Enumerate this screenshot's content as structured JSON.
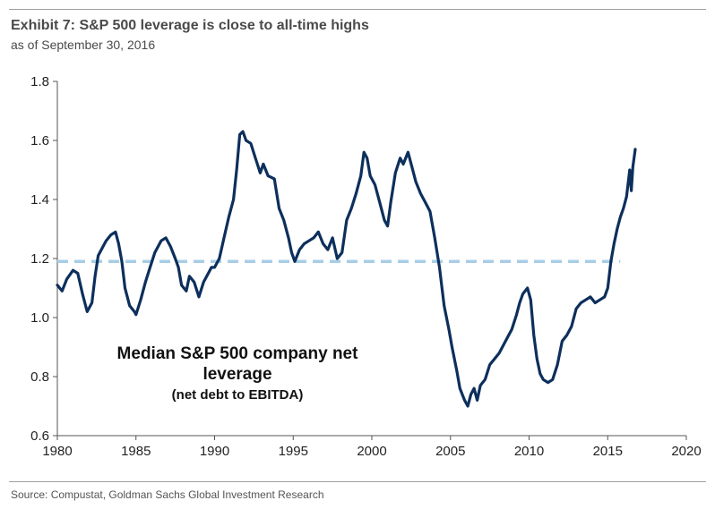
{
  "header": {
    "title": "Exhibit 7: S&P 500 leverage is close to all-time highs",
    "subtitle": "as of September 30, 2016"
  },
  "footer": {
    "source": "Source: Compustat, Goldman Sachs Global Investment Research"
  },
  "colors": {
    "series": "#0d2f5c",
    "reference": "#a8cde6",
    "axis": "#555555"
  },
  "chart_data": {
    "type": "line",
    "title": "Exhibit 7: S&P 500 leverage is close to all-time highs",
    "subtitle": "as of September 30, 2016",
    "xlabel": "",
    "ylabel": "",
    "xlim": [
      1980,
      2020
    ],
    "ylim": [
      0.6,
      1.8
    ],
    "x_ticks": [
      1980,
      1985,
      1990,
      1995,
      2000,
      2005,
      2010,
      2015,
      2020
    ],
    "y_ticks": [
      0.6,
      0.8,
      1.0,
      1.2,
      1.4,
      1.6,
      1.8
    ],
    "y_tick_labels": [
      "0.6",
      "0.8",
      "1.0",
      "1.2",
      "1.4",
      "1.6",
      "1.8"
    ],
    "grid": false,
    "annotation": {
      "line1": "Median  S&P 500 company net",
      "line2": "leverage",
      "line3": "(net debt to EBITDA)"
    },
    "reference_line": {
      "y": 1.19,
      "x_start": 1980,
      "x_end": 2015.8,
      "style": "dashed"
    },
    "series": [
      {
        "x": [
          1980.0,
          1980.3,
          1980.6,
          1981.0,
          1981.3,
          1981.6,
          1981.9,
          1982.2,
          1982.4,
          1982.6,
          1982.9,
          1983.1,
          1983.4,
          1983.7,
          1983.9,
          1984.1,
          1984.3,
          1984.6,
          1984.9,
          1985.0,
          1985.3,
          1985.6,
          1985.9,
          1986.2,
          1986.6,
          1986.9,
          1987.2,
          1987.5,
          1987.7,
          1987.9,
          1988.2,
          1988.4,
          1988.7,
          1989.0,
          1989.3,
          1989.6,
          1989.8,
          1990.0,
          1990.3,
          1990.6,
          1990.9,
          1991.2,
          1991.4,
          1991.6,
          1991.8,
          1992.0,
          1992.3,
          1992.6,
          1992.9,
          1993.1,
          1993.4,
          1993.8,
          1994.1,
          1994.4,
          1994.7,
          1994.9,
          1995.1,
          1995.4,
          1995.7,
          1996.0,
          1996.3,
          1996.6,
          1996.9,
          1997.2,
          1997.5,
          1997.8,
          1998.1,
          1998.4,
          1998.7,
          1999.0,
          1999.3,
          1999.5,
          1999.7,
          1999.9,
          2000.2,
          2000.5,
          2000.8,
          2001.0,
          2001.2,
          2001.5,
          2001.8,
          2002.0,
          2002.3,
          2002.5,
          2002.8,
          2003.1,
          2003.4,
          2003.7,
          2004.0,
          2004.3,
          2004.6,
          2004.9,
          2005.1,
          2005.4,
          2005.6,
          2005.9,
          2006.1,
          2006.3,
          2006.5,
          2006.7,
          2006.9,
          2007.2,
          2007.5,
          2007.8,
          2008.1,
          2008.3,
          2008.6,
          2008.9,
          2009.2,
          2009.4,
          2009.6,
          2009.9,
          2010.1,
          2010.3,
          2010.5,
          2010.7,
          2010.9,
          2011.2,
          2011.5,
          2011.8,
          2012.1,
          2012.4,
          2012.7,
          2013.0,
          2013.3,
          2013.6,
          2013.9,
          2014.2,
          2014.5,
          2014.8,
          2015.0,
          2015.2,
          2015.4,
          2015.6,
          2015.8,
          2016.0,
          2016.2,
          2016.4,
          2016.5,
          2016.6,
          2016.75
        ],
        "values": [
          1.11,
          1.09,
          1.13,
          1.16,
          1.15,
          1.08,
          1.02,
          1.05,
          1.14,
          1.21,
          1.24,
          1.26,
          1.28,
          1.29,
          1.25,
          1.19,
          1.1,
          1.04,
          1.02,
          1.01,
          1.06,
          1.12,
          1.17,
          1.22,
          1.26,
          1.27,
          1.24,
          1.2,
          1.17,
          1.11,
          1.09,
          1.14,
          1.12,
          1.07,
          1.12,
          1.15,
          1.17,
          1.17,
          1.2,
          1.27,
          1.34,
          1.4,
          1.5,
          1.62,
          1.63,
          1.6,
          1.59,
          1.54,
          1.49,
          1.52,
          1.48,
          1.47,
          1.37,
          1.33,
          1.27,
          1.22,
          1.19,
          1.23,
          1.25,
          1.26,
          1.27,
          1.29,
          1.25,
          1.23,
          1.27,
          1.2,
          1.22,
          1.33,
          1.37,
          1.42,
          1.48,
          1.56,
          1.54,
          1.48,
          1.45,
          1.39,
          1.33,
          1.31,
          1.39,
          1.49,
          1.54,
          1.52,
          1.56,
          1.52,
          1.46,
          1.42,
          1.39,
          1.36,
          1.27,
          1.17,
          1.04,
          0.96,
          0.9,
          0.82,
          0.76,
          0.72,
          0.7,
          0.74,
          0.76,
          0.72,
          0.77,
          0.79,
          0.84,
          0.86,
          0.88,
          0.9,
          0.93,
          0.96,
          1.01,
          1.05,
          1.08,
          1.1,
          1.06,
          0.94,
          0.86,
          0.81,
          0.79,
          0.78,
          0.79,
          0.84,
          0.92,
          0.94,
          0.97,
          1.03,
          1.05,
          1.06,
          1.07,
          1.05,
          1.06,
          1.07,
          1.1,
          1.19,
          1.25,
          1.3,
          1.34,
          1.37,
          1.41,
          1.5,
          1.43,
          1.51,
          1.57
        ]
      }
    ]
  }
}
